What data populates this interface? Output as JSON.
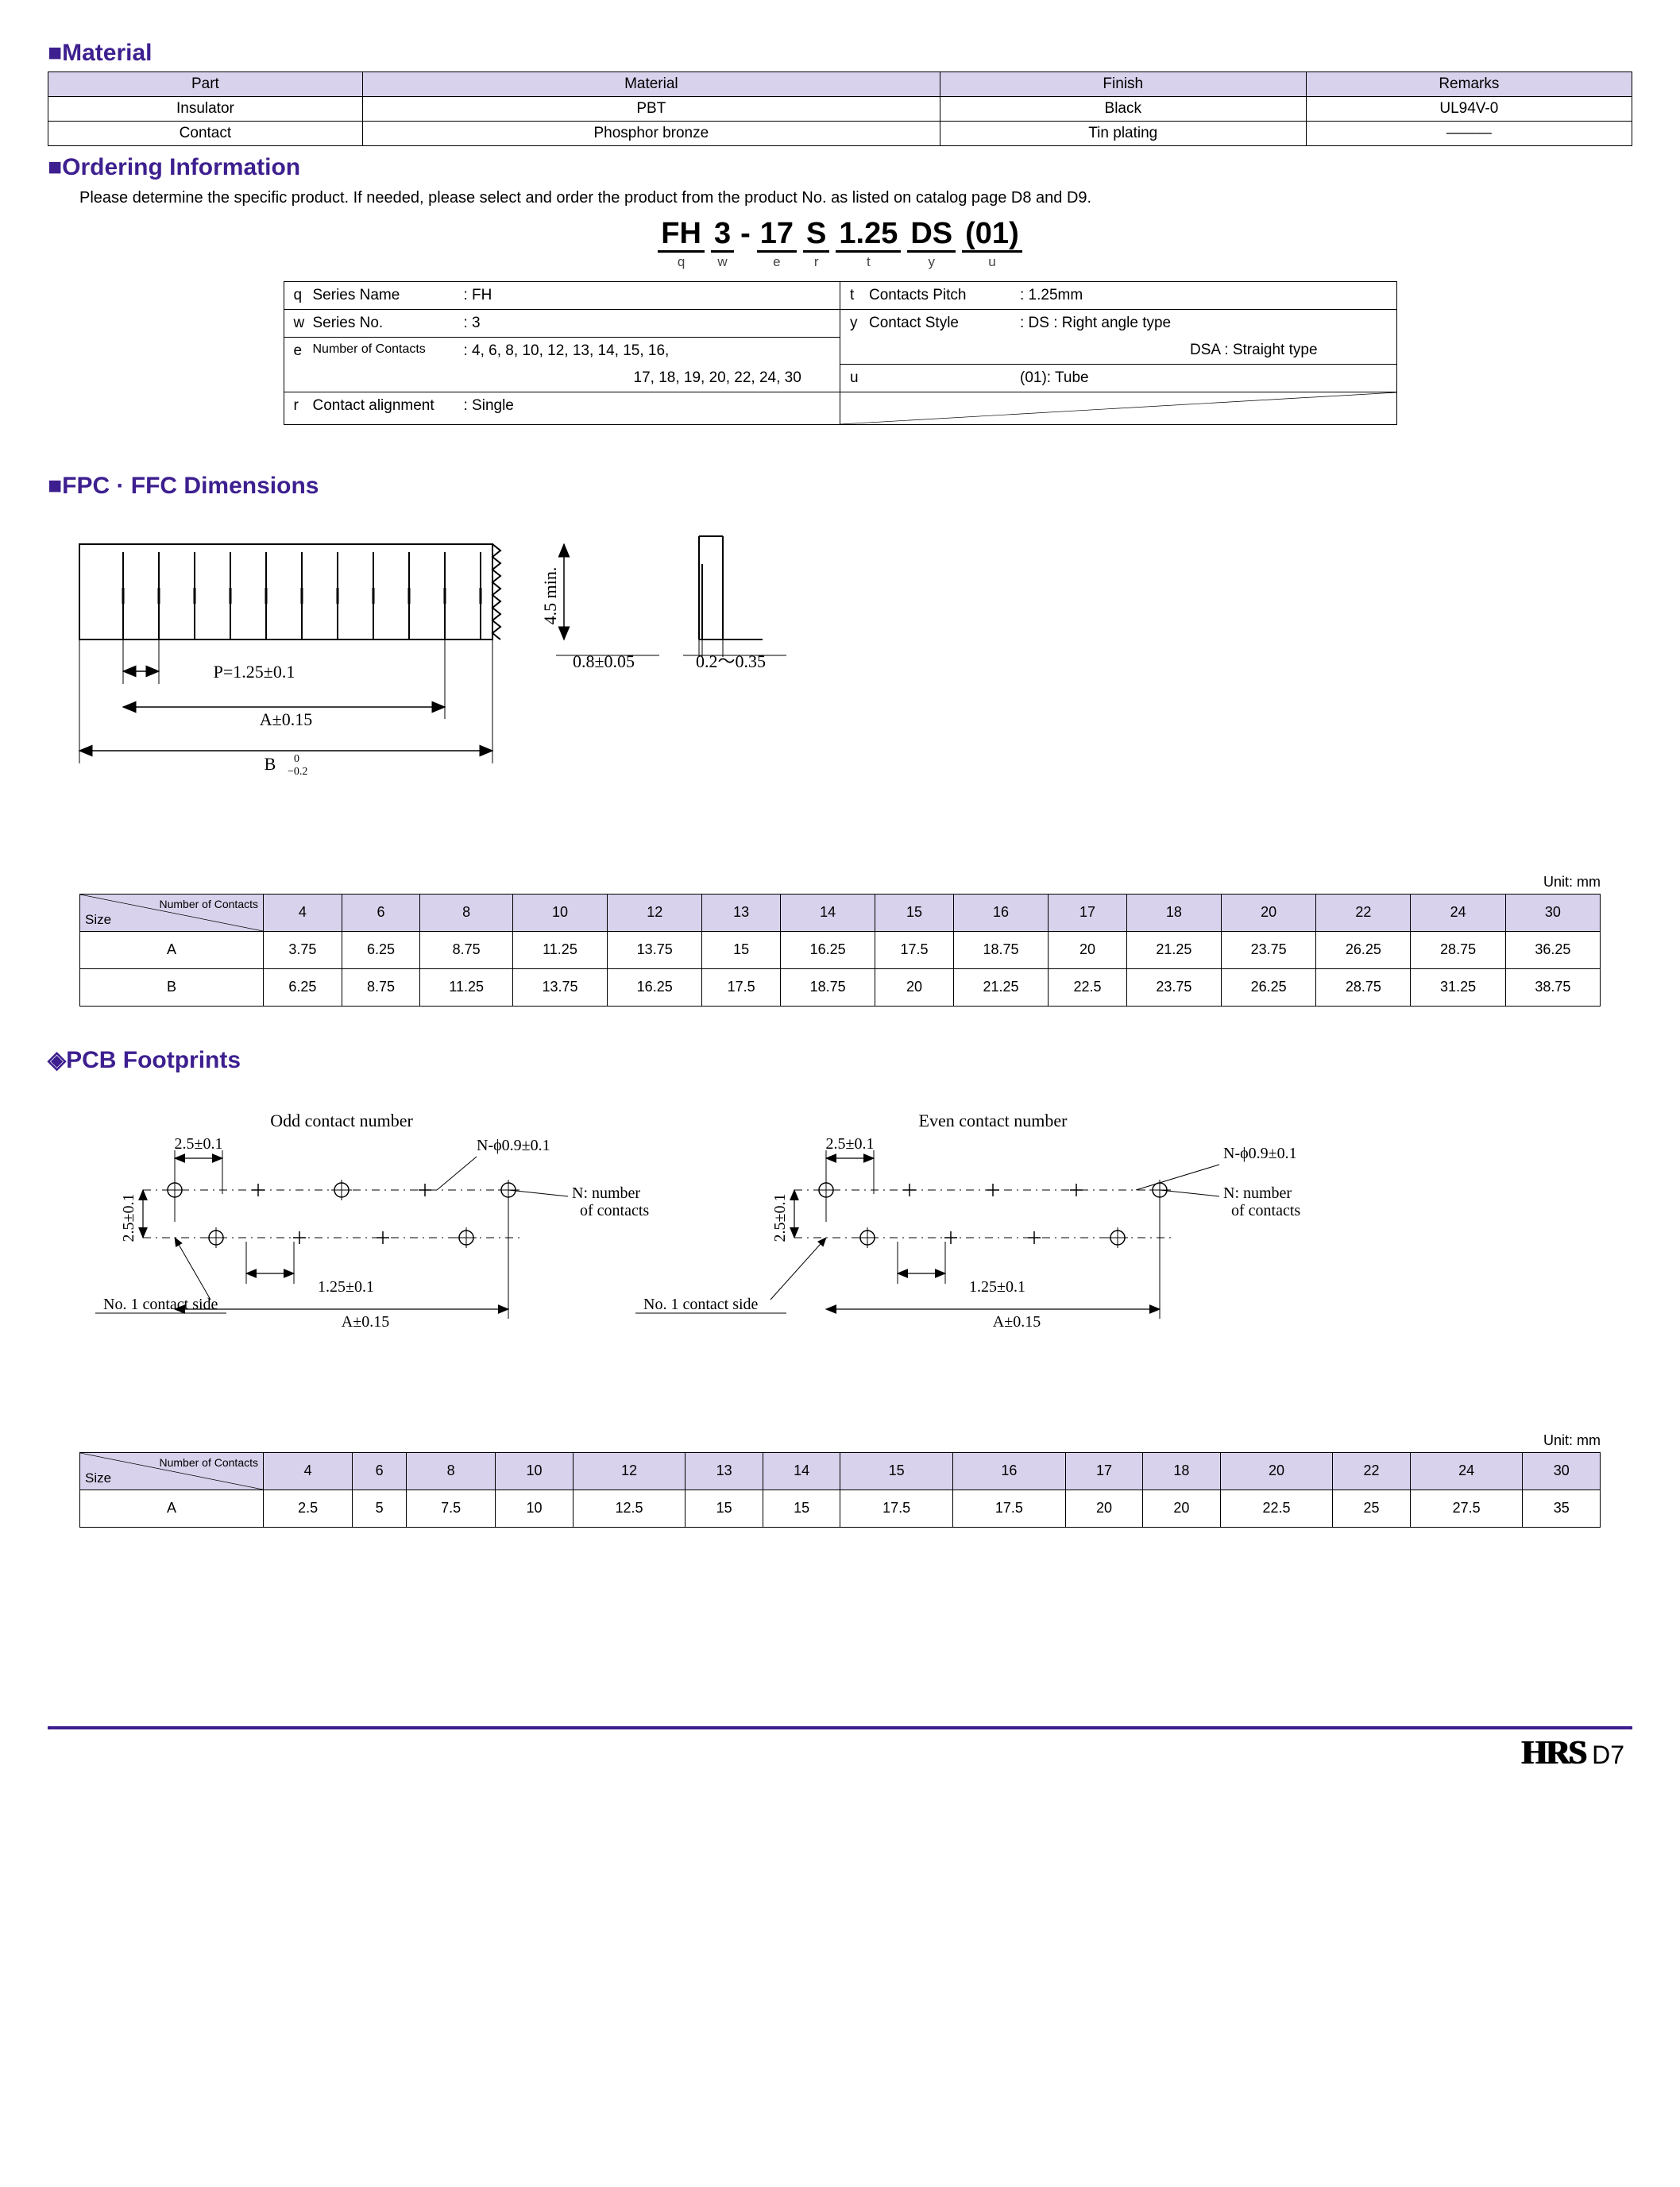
{
  "colors": {
    "accent": "#3d1f8f",
    "table_header_bg": "#d9d2ec",
    "border": "#000000",
    "text": "#000000",
    "background": "#ffffff"
  },
  "sections": {
    "material": "Material",
    "ordering": "Ordering Information",
    "fpc": "FPC · FFC Dimensions",
    "pcb": "PCB Footprints"
  },
  "material_table": {
    "headers": [
      "Part",
      "Material",
      "Finish",
      "Remarks"
    ],
    "rows": [
      [
        "Insulator",
        "PBT",
        "Black",
        "UL94V-0"
      ],
      [
        "Contact",
        "Phosphor bronze",
        "Tin plating",
        "———"
      ]
    ]
  },
  "ordering_text": "Please determine the specific product. If needed, please select and order the product from the product No. as listed on catalog page D8 and D9.",
  "part_number": {
    "segments": [
      {
        "text": "FH",
        "key": "q"
      },
      {
        "text": "3",
        "key": "w"
      },
      {
        "dash": "-"
      },
      {
        "text": "17",
        "key": "e"
      },
      {
        "text": "S",
        "key": "r"
      },
      {
        "text": "1.25",
        "key": "t"
      },
      {
        "text": "DS",
        "key": "y"
      },
      {
        "text": "(01)",
        "key": "u"
      }
    ]
  },
  "legend": {
    "left": [
      {
        "key": "q",
        "label": "Series Name",
        "value": ": FH"
      },
      {
        "key": "w",
        "label": "Series No.",
        "value": ": 3"
      },
      {
        "key": "e",
        "label": "Number of Contacts",
        "value": ": 4, 6, 8, 10, 12, 13, 14, 15, 16,",
        "small": true
      },
      {
        "key": "",
        "label": "",
        "value": "17, 18, 19, 20, 22, 24, 30",
        "cont": true
      },
      {
        "key": "r",
        "label": "Contact alignment",
        "value": ": Single"
      }
    ],
    "right": [
      {
        "key": "t",
        "label": "Contacts Pitch",
        "value": ": 1.25mm"
      },
      {
        "key": "y",
        "label": "Contact Style",
        "value": ": DS : Right angle type"
      },
      {
        "key": "",
        "label": "",
        "value": "DSA : Straight type",
        "cont": true
      },
      {
        "key": "u",
        "label": "",
        "value": "(01): Tube"
      },
      {
        "slash": true
      }
    ]
  },
  "unit_label": "Unit: mm",
  "fpc_drawing": {
    "p_label": "P=1.25±0.1",
    "a_label": "A±0.15",
    "b_label": "B ₋₀.₂⁰",
    "b_label_plain": "B",
    "b_tol_top": "0",
    "b_tol_bot": "−0.2",
    "h_label": "4.5 min.",
    "t1": "0.8±0.05",
    "t2": "0.2～0.35"
  },
  "dim_header": {
    "top": "Number of Contacts",
    "bot": "Size"
  },
  "fpc_table": {
    "contacts": [
      "4",
      "6",
      "8",
      "10",
      "12",
      "13",
      "14",
      "15",
      "16",
      "17",
      "18",
      "20",
      "22",
      "24",
      "30"
    ],
    "rows": [
      {
        "label": "A",
        "vals": [
          "3.75",
          "6.25",
          "8.75",
          "11.25",
          "13.75",
          "15",
          "16.25",
          "17.5",
          "18.75",
          "20",
          "21.25",
          "23.75",
          "26.25",
          "28.75",
          "36.25"
        ]
      },
      {
        "label": "B",
        "vals": [
          "6.25",
          "8.75",
          "11.25",
          "13.75",
          "16.25",
          "17.5",
          "18.75",
          "20",
          "21.25",
          "22.5",
          "23.75",
          "26.25",
          "28.75",
          "31.25",
          "38.75"
        ]
      }
    ]
  },
  "pcb_drawing": {
    "odd_title": "Odd contact number",
    "even_title": "Even contact number",
    "x_off": "2.5±0.1",
    "y_off": "2.5±0.1",
    "hole": "N-ϕ0.9±0.1",
    "n_label_1": "N: number",
    "n_label_2": "of contacts",
    "pitch": "1.25±0.1",
    "a_dim": "A±0.15",
    "side": "No. 1 contact side"
  },
  "pcb_table": {
    "contacts": [
      "4",
      "6",
      "8",
      "10",
      "12",
      "13",
      "14",
      "15",
      "16",
      "17",
      "18",
      "20",
      "22",
      "24",
      "30"
    ],
    "rows": [
      {
        "label": "A",
        "vals": [
          "2.5",
          "5",
          "7.5",
          "10",
          "12.5",
          "15",
          "15",
          "17.5",
          "17.5",
          "20",
          "20",
          "22.5",
          "25",
          "27.5",
          "35"
        ]
      }
    ]
  },
  "footer": {
    "logo": "HRS",
    "page": "D7"
  }
}
